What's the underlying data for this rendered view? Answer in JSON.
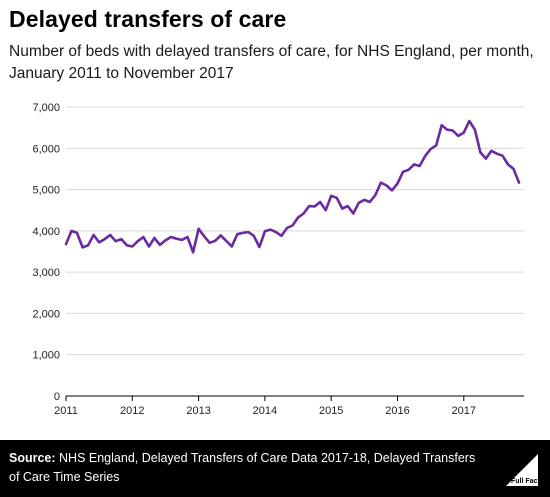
{
  "header": {
    "title": "Delayed transfers of care",
    "subtitle": "Number of beds with delayed transfers of care, for NHS England, per month, January 2011 to November 2017"
  },
  "footer": {
    "source_label": "Source:",
    "source_text": "NHS England, Delayed Transfers of Care Data 2017-18, Delayed Transfers of Care Time Series",
    "logo_text": "Full Fact"
  },
  "colors": {
    "line": "#6a2ba1",
    "grid": "#d9d9d9",
    "footer_bg": "#000000"
  },
  "chart_data": {
    "type": "line",
    "title": "Delayed transfers of care",
    "ylim": [
      0,
      7000
    ],
    "yticks": [
      0,
      1000,
      2000,
      3000,
      4000,
      5000,
      6000,
      7000
    ],
    "ytick_labels": [
      "0",
      "1,000",
      "2,000",
      "3,000",
      "4,000",
      "5,000",
      "6,000",
      "7,000"
    ],
    "xticks": [
      "2011",
      "2012",
      "2013",
      "2014",
      "2015",
      "2016",
      "2017"
    ],
    "x_start": "2011-01",
    "series": [
      {
        "values": [
          3680,
          4000,
          3950,
          3600,
          3650,
          3900,
          3720,
          3800,
          3900,
          3750,
          3800,
          3650,
          3620,
          3750,
          3850,
          3620,
          3830,
          3660,
          3770,
          3850,
          3810,
          3780,
          3850,
          3480,
          4050,
          3870,
          3710,
          3760,
          3890,
          3760,
          3620,
          3920,
          3950,
          3970,
          3880,
          3610,
          3990,
          4030,
          3970,
          3880,
          4070,
          4130,
          4320,
          4420,
          4600,
          4590,
          4700,
          4500,
          4850,
          4800,
          4540,
          4600,
          4420,
          4680,
          4750,
          4700,
          4870,
          5170,
          5100,
          4980,
          5150,
          5430,
          5480,
          5610,
          5570,
          5810,
          5980,
          6070,
          6560,
          6450,
          6430,
          6300,
          6380,
          6660,
          6450,
          5900,
          5750,
          5940,
          5870,
          5820,
          5610,
          5500,
          5170
        ]
      }
    ]
  }
}
